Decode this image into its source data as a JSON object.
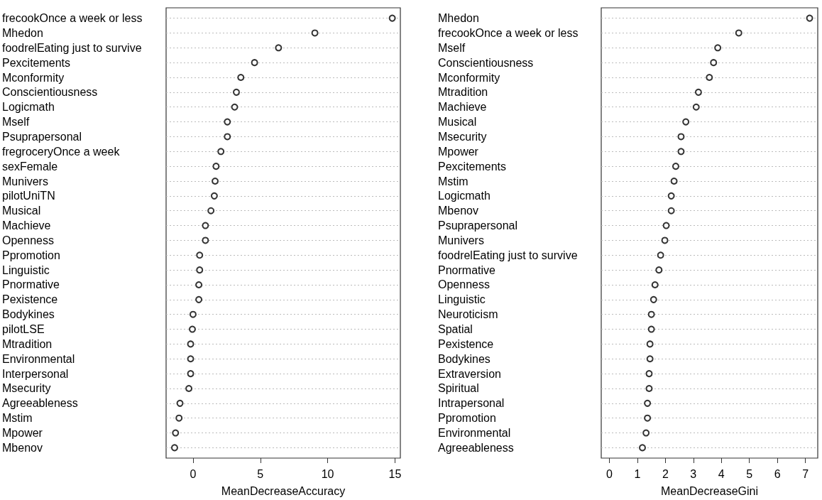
{
  "chart_data": [
    {
      "type": "scatter",
      "orientation": "horizontal",
      "xlabel": "MeanDecreaseAccuracy",
      "categories": [
        "frecookOnce a week or less",
        "Mhedon",
        "foodrelEating just to survive",
        "Pexcitements",
        "Mconformity",
        "Conscientiousness",
        "Logicmath",
        "Mself",
        "Psuprapersonal",
        "fregroceryOnce a week",
        "sexFemale",
        "Munivers",
        "pilotUniTN",
        "Musical",
        "Machieve",
        "Openness",
        "Ppromotion",
        "Linguistic",
        "Pnormative",
        "Pexistence",
        "Bodykines",
        "pilotLSE",
        "Mtradition",
        "Environmental",
        "Interpersonal",
        "Msecurity",
        "Agreeableness",
        "Mstim",
        "Mpower",
        "Mbenov"
      ],
      "values": [
        14.8,
        9.05,
        6.35,
        4.57,
        3.55,
        3.22,
        3.09,
        2.55,
        2.55,
        2.07,
        1.71,
        1.64,
        1.58,
        1.33,
        0.92,
        0.92,
        0.49,
        0.49,
        0.43,
        0.43,
        0.0,
        -0.05,
        -0.18,
        -0.18,
        -0.18,
        -0.31,
        -0.97,
        -1.04,
        -1.3,
        -1.37
      ],
      "color": "#000000",
      "marker": "circle",
      "grid": "y",
      "xlim": [
        -2,
        15.4
      ],
      "xticks": [
        0,
        5,
        10,
        15
      ]
    },
    {
      "type": "scatter",
      "orientation": "horizontal",
      "xlabel": "MeanDecreaseGini",
      "categories": [
        "Mhedon",
        "frecookOnce a week or less",
        "Mself",
        "Conscientiousness",
        "Mconformity",
        "Mtradition",
        "Machieve",
        "Musical",
        "Msecurity",
        "Mpower",
        "Pexcitements",
        "Mstim",
        "Logicmath",
        "Mbenov",
        "Psuprapersonal",
        "Munivers",
        "foodrelEating just to survive",
        "Pnormative",
        "Openness",
        "Linguistic",
        "Neuroticism",
        "Spatial",
        "Pexistence",
        "Bodykines",
        "Extraversion",
        "Spiritual",
        "Intrapersonal",
        "Ppromotion",
        "Environmental",
        "Agreeableness"
      ],
      "values": [
        7.15,
        4.62,
        3.87,
        3.72,
        3.57,
        3.18,
        3.1,
        2.73,
        2.56,
        2.56,
        2.37,
        2.31,
        2.21,
        2.21,
        2.03,
        1.98,
        1.83,
        1.77,
        1.63,
        1.58,
        1.5,
        1.5,
        1.45,
        1.45,
        1.42,
        1.42,
        1.36,
        1.36,
        1.31,
        1.18
      ],
      "color": "#000000",
      "marker": "circle",
      "grid": "y",
      "xlim": [
        -0.29,
        7.44
      ],
      "xticks": [
        0,
        1,
        2,
        3,
        4,
        5,
        6,
        7
      ]
    }
  ]
}
